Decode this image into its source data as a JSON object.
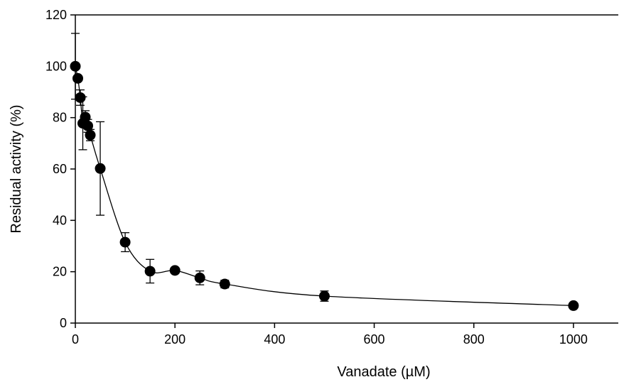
{
  "chart_data": {
    "type": "scatter",
    "xlabel": "Vanadate (µM)",
    "ylabel": "Residual activity (%)",
    "xlim": [
      0,
      1090
    ],
    "ylim": [
      0,
      120
    ],
    "xticks": [
      0,
      200,
      400,
      600,
      800,
      1000
    ],
    "yticks": [
      0,
      20,
      40,
      60,
      80,
      100,
      120
    ],
    "xtick_labels": [
      "0",
      "200",
      "400",
      "600",
      "800",
      "1000"
    ],
    "ytick_labels": [
      "0",
      "20",
      "40",
      "60",
      "80",
      "100",
      "120"
    ],
    "grid": false,
    "legend": "none",
    "trend_line": "smooth curve through means",
    "series": [
      {
        "x": [
          0,
          5,
          10,
          15,
          20,
          25,
          30,
          50,
          100,
          150,
          200,
          250,
          300,
          500,
          1000
        ],
        "y": [
          100,
          95.3,
          87.8,
          77.8,
          80.2,
          76.8,
          73.2,
          60.2,
          31.5,
          20.2,
          20.5,
          17.6,
          15.2,
          10.5,
          6.8
        ],
        "error": [
          12.8,
          0,
          3.0,
          10.3,
          2.5,
          2.5,
          2.2,
          18.2,
          3.7,
          4.6,
          0,
          2.7,
          1.5,
          2.0,
          0
        ]
      }
    ]
  }
}
